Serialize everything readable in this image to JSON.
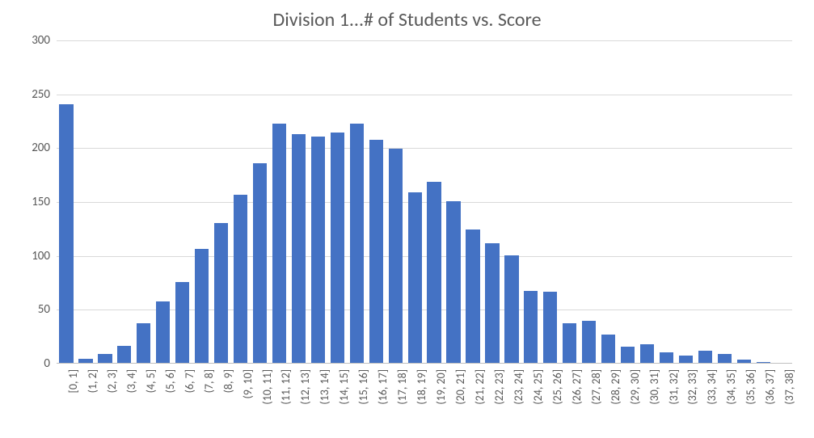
{
  "chart": {
    "type": "bar",
    "title": "Division 1...# of Students vs. Score",
    "title_fontsize": 24,
    "title_color": "#595959",
    "categories": [
      "[0, 1]",
      "(1, 2]",
      "(2, 3]",
      "(3, 4]",
      "(4, 5]",
      "(5, 6]",
      "(6, 7]",
      "(7, 8]",
      "(8, 9]",
      "(9, 10]",
      "(10, 11]",
      "(11, 12]",
      "(12, 13]",
      "(13, 14]",
      "(14, 15]",
      "(15, 16]",
      "(16, 17]",
      "(17, 18]",
      "(18, 19]",
      "(19, 20]",
      "(20, 21]",
      "(21, 22]",
      "(22, 23]",
      "(23, 24]",
      "(24, 25]",
      "(25, 26]",
      "(26, 27]",
      "(27, 28]",
      "(28, 29]",
      "(29, 30]",
      "(30, 31]",
      "(31, 32]",
      "(32, 33]",
      "(33, 34]",
      "(34, 35]",
      "(35, 36]",
      "(36, 37]",
      "(37, 38]"
    ],
    "values": [
      240,
      4,
      8,
      16,
      37,
      57,
      75,
      106,
      130,
      156,
      185,
      222,
      212,
      210,
      214,
      222,
      207,
      199,
      158,
      168,
      150,
      124,
      111,
      100,
      67,
      66,
      37,
      39,
      26,
      15,
      17,
      10,
      7,
      11,
      8,
      3,
      1,
      0
    ],
    "bar_color": "#4472c4",
    "bar_width": 0.72,
    "ylim": [
      0,
      300
    ],
    "ytick_step": 50,
    "yticks": [
      0,
      50,
      100,
      150,
      200,
      250,
      300
    ],
    "grid_color": "#d9d9d9",
    "axis_line_color": "#bfbfbf",
    "background_color": "#ffffff",
    "tick_label_fontsize": 15,
    "tick_label_color": "#595959",
    "x_label_rotation": -90,
    "font_family": "Calibri"
  }
}
